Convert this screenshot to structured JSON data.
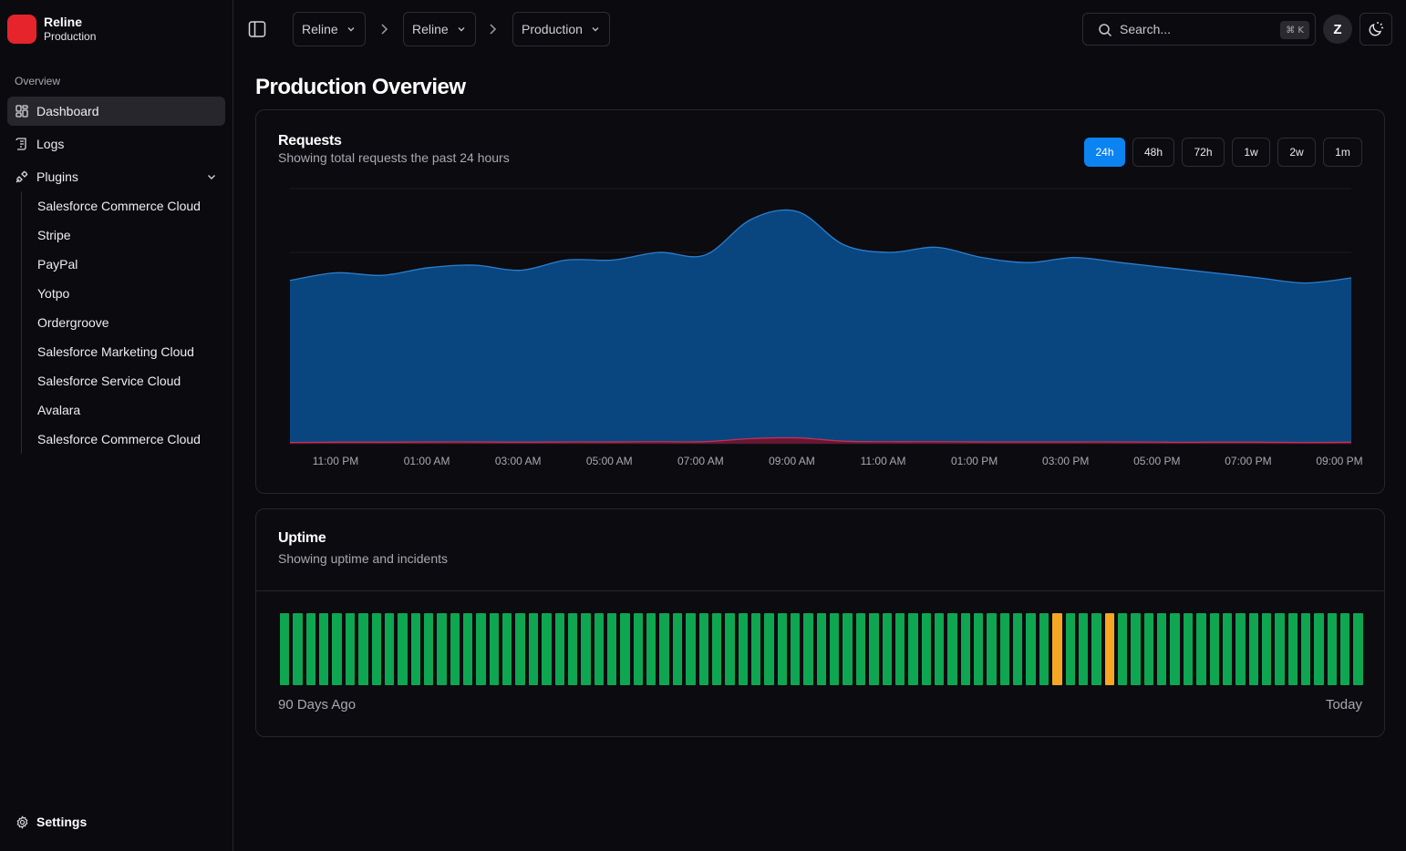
{
  "brand": {
    "name": "Reline",
    "subtitle": "Production"
  },
  "sidebar": {
    "section_label": "Overview",
    "items": [
      {
        "label": "Dashboard",
        "icon": "dashboard-icon",
        "active": true
      },
      {
        "label": "Logs",
        "icon": "scroll-icon"
      },
      {
        "label": "Plugins",
        "icon": "plug-icon",
        "expanded": true
      }
    ],
    "plugins": [
      "Salesforce Commerce Cloud",
      "Stripe",
      "PayPal",
      "Yotpo",
      "Ordergroove",
      "Salesforce Marketing Cloud",
      "Salesforce Service Cloud",
      "Avalara",
      "Salesforce Commerce Cloud"
    ],
    "settings_label": "Settings"
  },
  "header": {
    "breadcrumbs": [
      "Reline",
      "Reline",
      "Production"
    ],
    "search_placeholder": "Search...",
    "search_shortcut": "⌘ K",
    "avatar_initial": "Z"
  },
  "page": {
    "title": "Production Overview"
  },
  "requests": {
    "title": "Requests",
    "description": "Showing total requests the past 24 hours",
    "ranges": [
      "24h",
      "48h",
      "72h",
      "1w",
      "2w",
      "1m"
    ],
    "active_range": "24h"
  },
  "chart_data": {
    "type": "area",
    "x_ticks": [
      "11:00 PM",
      "01:00 AM",
      "03:00 AM",
      "05:00 AM",
      "07:00 AM",
      "09:00 AM",
      "11:00 AM",
      "01:00 PM",
      "03:00 PM",
      "05:00 PM",
      "07:00 PM",
      "09:00 PM"
    ],
    "grid": true,
    "ylim": [
      0,
      100
    ],
    "series": [
      {
        "color": "#0a4a86",
        "stroke": "#2a7fd0",
        "values": [
          64,
          67,
          66,
          69,
          70,
          68,
          72,
          72,
          75,
          74,
          88,
          91,
          78,
          75,
          77,
          73,
          71,
          73,
          71,
          69,
          67,
          65,
          63,
          65
        ]
      },
      {
        "color": "#6b1530",
        "stroke": "#c23155",
        "values": [
          0.5,
          0.6,
          0.6,
          0.7,
          0.7,
          0.6,
          0.7,
          0.7,
          0.8,
          0.8,
          2.0,
          2.3,
          1.0,
          0.8,
          0.8,
          0.7,
          0.7,
          0.7,
          0.7,
          0.6,
          0.6,
          0.6,
          0.5,
          0.6
        ]
      }
    ]
  },
  "uptime": {
    "title": "Uptime",
    "description": "Showing uptime and incidents",
    "label_start": "90 Days Ago",
    "label_end": "Today",
    "colors": {
      "up": "#0ea650",
      "incident": "#f5a623"
    },
    "days": 83,
    "incident_days": [
      59,
      63
    ]
  }
}
